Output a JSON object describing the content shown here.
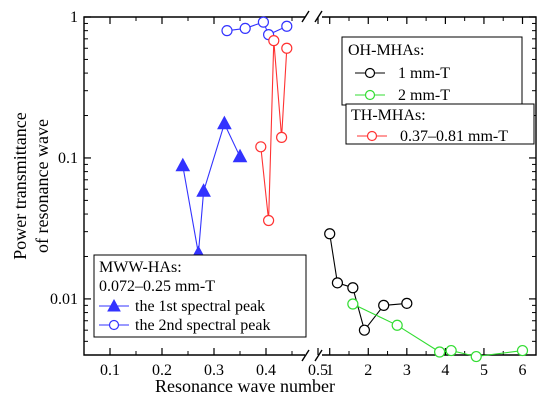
{
  "chart_data": {
    "type": "scatter",
    "ylabel": [
      "Power transmittance",
      "of resonance wave"
    ],
    "xlabel": "Resonance wave number",
    "y_scale": "log",
    "ylim": [
      0.004,
      1
    ],
    "y_ticks": [
      "1",
      "0.1",
      "0.01"
    ],
    "y_tick_values": [
      1,
      0.1,
      0.01
    ],
    "x_axis_broken": true,
    "x_left_range": [
      0.05,
      0.475
    ],
    "x_left_ticks": [
      "0.1",
      "0.2",
      "0.3",
      "0.4",
      "0.5"
    ],
    "x_left_tick_values": [
      0.1,
      0.2,
      0.3,
      0.4,
      0.5
    ],
    "x_right_range": [
      0.8,
      6.35
    ],
    "x_right_ticks": [
      "1",
      "2",
      "3",
      "4",
      "5",
      "6"
    ],
    "x_right_tick_values": [
      1,
      2,
      3,
      4,
      5,
      6
    ],
    "series": [
      {
        "name": "the 1st spectral peak",
        "group": "MWW-HAs",
        "panel": "left",
        "color": "#3333ff",
        "marker": "triangle-filled",
        "points": [
          [
            0.24,
            0.088
          ],
          [
            0.27,
            0.021
          ],
          [
            0.28,
            0.058
          ],
          [
            0.32,
            0.175
          ],
          [
            0.35,
            0.102
          ]
        ]
      },
      {
        "name": "the 2nd spectral peak",
        "group": "MWW-HAs",
        "panel": "left",
        "color": "#3333ff",
        "marker": "circle-open",
        "points": [
          [
            0.325,
            0.8
          ],
          [
            0.36,
            0.83
          ],
          [
            0.395,
            0.92
          ],
          [
            0.405,
            0.75
          ],
          [
            0.44,
            0.86
          ]
        ]
      },
      {
        "name": "0.37–0.81 mm-T",
        "group": "TH-MHAs",
        "panel": "left",
        "color": "#ff3333",
        "marker": "circle-open",
        "points": [
          [
            0.39,
            0.12
          ],
          [
            0.405,
            0.036
          ],
          [
            0.415,
            0.68
          ],
          [
            0.43,
            0.14
          ],
          [
            0.44,
            0.6
          ]
        ]
      },
      {
        "name": "1 mm-T",
        "group": "OH-MHAs",
        "panel": "right",
        "color": "#000000",
        "marker": "circle-open",
        "points": [
          [
            1.0,
            0.029
          ],
          [
            1.2,
            0.013
          ],
          [
            1.6,
            0.012
          ],
          [
            1.9,
            0.006
          ],
          [
            2.4,
            0.009
          ],
          [
            3.0,
            0.0093
          ]
        ]
      },
      {
        "name": "2 mm-T",
        "group": "OH-MHAs",
        "panel": "right",
        "color": "#33dd33",
        "marker": "circle-open",
        "points": [
          [
            1.6,
            0.0092
          ],
          [
            2.75,
            0.0065
          ],
          [
            3.85,
            0.0042
          ],
          [
            4.15,
            0.0043
          ],
          [
            4.8,
            0.0039
          ],
          [
            6.0,
            0.0043
          ]
        ]
      }
    ],
    "legends": [
      {
        "title": "OH-MHAs:",
        "entries": [
          "1 mm-T",
          "2 mm-T"
        ],
        "placement": "top-right"
      },
      {
        "title": "TH-MHAs:",
        "entries": [
          "0.37–0.81 mm-T"
        ],
        "placement": "top-right"
      },
      {
        "title": "MWW-HAs:",
        "subtitle": "0.072–0.25 mm-T",
        "entries": [
          "the 1st spectral peak",
          "the 2nd spectral peak"
        ],
        "placement": "bottom-left"
      }
    ]
  }
}
